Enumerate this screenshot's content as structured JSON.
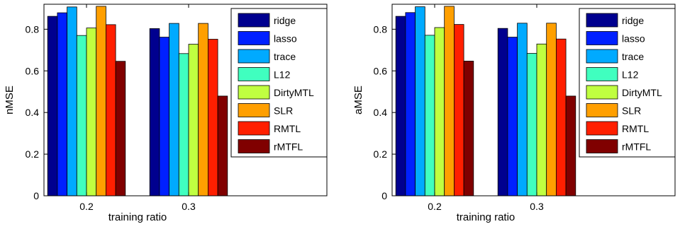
{
  "chart_data": [
    {
      "type": "bar",
      "categories": [
        "0.2",
        "0.3"
      ],
      "xlabel": "training ratio",
      "ylabel": "nMSE",
      "ylim": [
        0,
        0.92
      ],
      "yticks": [
        "0",
        "0.2",
        "0.4",
        "0.6",
        "0.8"
      ],
      "legend_position": "top-right",
      "grid": false,
      "series": [
        {
          "name": "ridge",
          "color": "#00008f",
          "values": [
            0.862,
            0.803
          ]
        },
        {
          "name": "lasso",
          "color": "#0020ff",
          "values": [
            0.879,
            0.762
          ]
        },
        {
          "name": "trace",
          "color": "#00aaff",
          "values": [
            0.907,
            0.828
          ]
        },
        {
          "name": "L12",
          "color": "#40ffbf",
          "values": [
            0.77,
            0.683
          ]
        },
        {
          "name": "DirtyMTL",
          "color": "#c0ff40",
          "values": [
            0.806,
            0.728
          ]
        },
        {
          "name": "SLR",
          "color": "#ff9f00",
          "values": [
            0.91,
            0.828
          ]
        },
        {
          "name": "RMTL",
          "color": "#ff1f00",
          "values": [
            0.822,
            0.752
          ]
        },
        {
          "name": "rMTFL",
          "color": "#800000",
          "values": [
            0.646,
            0.479
          ]
        }
      ]
    },
    {
      "type": "bar",
      "categories": [
        "0.2",
        "0.3"
      ],
      "xlabel": "training ratio",
      "ylabel": "aMSE",
      "ylim": [
        0,
        0.92
      ],
      "yticks": [
        "0",
        "0.2",
        "0.4",
        "0.6",
        "0.8"
      ],
      "legend_position": "top-right",
      "grid": false,
      "series": [
        {
          "name": "ridge",
          "color": "#00008f",
          "values": [
            0.862,
            0.804
          ]
        },
        {
          "name": "lasso",
          "color": "#0020ff",
          "values": [
            0.88,
            0.762
          ]
        },
        {
          "name": "trace",
          "color": "#00aaff",
          "values": [
            0.908,
            0.829
          ]
        },
        {
          "name": "L12",
          "color": "#40ffbf",
          "values": [
            0.771,
            0.684
          ]
        },
        {
          "name": "DirtyMTL",
          "color": "#c0ff40",
          "values": [
            0.808,
            0.729
          ]
        },
        {
          "name": "SLR",
          "color": "#ff9f00",
          "values": [
            0.91,
            0.829
          ]
        },
        {
          "name": "RMTL",
          "color": "#ff1f00",
          "values": [
            0.823,
            0.753
          ]
        },
        {
          "name": "rMTFL",
          "color": "#800000",
          "values": [
            0.647,
            0.479
          ]
        }
      ]
    }
  ]
}
